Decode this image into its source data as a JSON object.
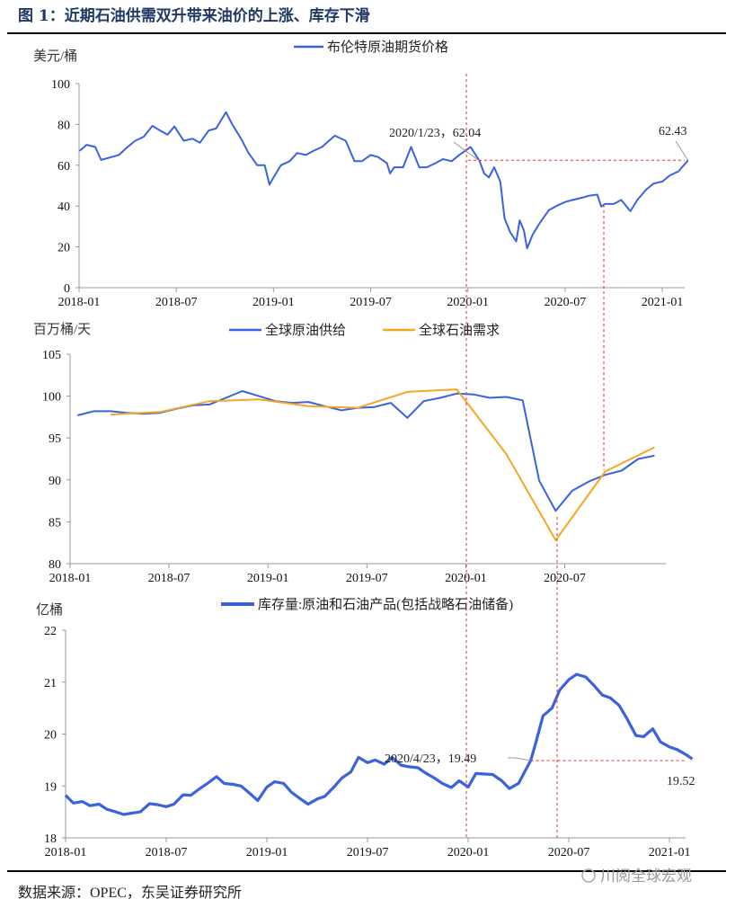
{
  "figure_title": "图 1：近期石油供需双升带来油价的上涨、库存下滑",
  "source": "数据来源：OPEC，东吴证券研究所",
  "watermark": "川阅全球宏观",
  "colors": {
    "blue": "#3a62e0",
    "orange": "#f5a623",
    "ref_line": "#e03030",
    "title": "#1f3864"
  },
  "reference_dates": [
    "2020-01",
    "2020-06",
    "2020-09"
  ],
  "chart_data": [
    {
      "type": "line",
      "ylabel": "美元/桶",
      "ylim": [
        0,
        100
      ],
      "yticks": [
        "0",
        "20",
        "40",
        "60",
        "80",
        "100"
      ],
      "xticks": [
        "2018-01",
        "2018-07",
        "2019-01",
        "2019-07",
        "2020-01",
        "2020-07",
        "2021-01"
      ],
      "legend_position": "top-center",
      "grid": false,
      "series": [
        {
          "name": "布伦特原油期货价格",
          "color": "#3a62e0",
          "x": [
            "2018-01-02",
            "2018-01-15",
            "2018-02-01",
            "2018-02-12",
            "2018-03-01",
            "2018-03-15",
            "2018-04-01",
            "2018-04-15",
            "2018-05-01",
            "2018-05-17",
            "2018-06-01",
            "2018-06-15",
            "2018-06-28",
            "2018-07-15",
            "2018-08-01",
            "2018-08-15",
            "2018-09-01",
            "2018-09-15",
            "2018-10-03",
            "2018-10-15",
            "2018-11-01",
            "2018-11-15",
            "2018-12-01",
            "2018-12-15",
            "2018-12-24",
            "2019-01-01",
            "2019-01-15",
            "2019-02-01",
            "2019-02-15",
            "2019-03-01",
            "2019-03-15",
            "2019-04-01",
            "2019-04-25",
            "2019-05-15",
            "2019-06-01",
            "2019-06-15",
            "2019-07-01",
            "2019-07-15",
            "2019-08-01",
            "2019-08-07",
            "2019-08-15",
            "2019-09-01",
            "2019-09-16",
            "2019-10-01",
            "2019-10-15",
            "2019-11-01",
            "2019-11-15",
            "2019-12-01",
            "2019-12-15",
            "2020-01-06",
            "2020-01-23",
            "2020-02-01",
            "2020-02-10",
            "2020-02-20",
            "2020-03-01",
            "2020-03-09",
            "2020-03-20",
            "2020-03-31",
            "2020-04-07",
            "2020-04-15",
            "2020-04-21",
            "2020-05-01",
            "2020-05-15",
            "2020-06-01",
            "2020-06-15",
            "2020-07-01",
            "2020-07-15",
            "2020-08-01",
            "2020-08-15",
            "2020-08-31",
            "2020-09-08",
            "2020-09-15",
            "2020-10-01",
            "2020-10-15",
            "2020-11-02",
            "2020-11-15",
            "2020-12-01",
            "2020-12-15",
            "2021-01-01",
            "2021-01-15",
            "2021-02-01",
            "2021-02-19"
          ],
          "values": [
            67,
            70,
            69,
            62.6,
            64,
            65,
            69,
            72,
            74,
            79.3,
            77,
            75,
            79,
            72,
            73,
            71,
            77,
            78,
            86,
            80,
            73,
            66,
            60,
            60,
            50.5,
            54,
            60,
            62,
            66,
            65,
            67,
            69,
            74.5,
            72,
            62,
            62,
            65,
            64,
            61,
            56,
            59,
            59,
            69,
            59,
            59,
            61,
            63,
            62,
            65,
            69,
            62.04,
            56,
            54,
            59,
            52,
            34,
            27,
            22.7,
            33,
            28,
            19.3,
            26,
            32,
            38,
            40,
            42,
            43,
            44,
            45,
            45.6,
            39.8,
            41,
            41,
            43,
            37.5,
            43,
            48,
            51,
            52,
            55,
            57,
            62.43
          ]
        }
      ],
      "annotations": [
        {
          "text": "2020/1/23，62.04",
          "x": "2020-01-23",
          "y": 62.04
        },
        {
          "text": "62.43",
          "x": "2021-02-19",
          "y": 62.43
        }
      ]
    },
    {
      "type": "line",
      "ylabel": "百万桶/天",
      "ylim": [
        80,
        105
      ],
      "yticks": [
        "80",
        "85",
        "90",
        "95",
        "100",
        "105"
      ],
      "xticks": [
        "2018-01",
        "2018-07",
        "2019-01",
        "2019-07",
        "2020-01",
        "2020-07"
      ],
      "legend_position": "top-center",
      "grid": false,
      "series": [
        {
          "name": "全球原油供给",
          "color": "#3a62e0",
          "x": [
            "2018-01",
            "2018-02",
            "2018-03",
            "2018-04",
            "2018-05",
            "2018-06",
            "2018-07",
            "2018-08",
            "2018-09",
            "2018-10",
            "2018-11",
            "2018-12",
            "2019-01",
            "2019-02",
            "2019-03",
            "2019-04",
            "2019-05",
            "2019-06",
            "2019-07",
            "2019-08",
            "2019-09",
            "2019-10",
            "2019-11",
            "2019-12",
            "2020-01",
            "2020-02",
            "2020-03",
            "2020-04",
            "2020-05",
            "2020-06",
            "2020-07",
            "2020-08",
            "2020-09",
            "2020-10",
            "2020-11",
            "2020-12"
          ],
          "values": [
            97.7,
            98.2,
            98.2,
            98.0,
            97.9,
            98.0,
            98.5,
            98.9,
            99.0,
            99.8,
            100.6,
            100.0,
            99.4,
            99.2,
            99.3,
            98.8,
            98.3,
            98.6,
            98.7,
            99.2,
            97.4,
            99.4,
            99.8,
            100.3,
            100.2,
            99.8,
            99.9,
            99.5,
            89.9,
            86.3,
            88.7,
            89.8,
            90.6,
            91.1,
            92.5,
            92.9
          ]
        },
        {
          "name": "全球石油需求",
          "color": "#f5a623",
          "x": [
            "2018-03",
            "2018-06",
            "2018-09",
            "2018-12",
            "2019-03",
            "2019-06",
            "2019-09",
            "2019-12",
            "2020-03",
            "2020-06",
            "2020-09",
            "2020-12"
          ],
          "values": [
            97.8,
            98.1,
            99.4,
            99.6,
            98.8,
            98.6,
            100.5,
            100.8,
            93.1,
            82.8,
            91.0,
            93.9
          ]
        }
      ]
    },
    {
      "type": "line",
      "ylabel": "亿桶",
      "ylim": [
        18,
        22
      ],
      "yticks": [
        "18",
        "19",
        "20",
        "21",
        "22"
      ],
      "xticks": [
        "2018-01",
        "2018-07",
        "2019-01",
        "2019-07",
        "2020-01",
        "2020-07",
        "2021-01"
      ],
      "legend_position": "top-center",
      "grid": false,
      "series": [
        {
          "name": "库存量:原油和石油产品(包括战略石油储备)",
          "color": "#3a62e0",
          "x": [
            "2018-01-01",
            "2018-01-15",
            "2018-02-01",
            "2018-02-15",
            "2018-03-01",
            "2018-03-15",
            "2018-04-01",
            "2018-04-15",
            "2018-05-01",
            "2018-05-15",
            "2018-06-01",
            "2018-06-15",
            "2018-07-01",
            "2018-07-15",
            "2018-08-01",
            "2018-08-15",
            "2018-09-01",
            "2018-09-15",
            "2018-10-01",
            "2018-10-15",
            "2018-11-01",
            "2018-11-15",
            "2018-12-01",
            "2018-12-15",
            "2019-01-01",
            "2019-01-15",
            "2019-02-01",
            "2019-02-15",
            "2019-03-01",
            "2019-03-15",
            "2019-04-01",
            "2019-04-15",
            "2019-05-01",
            "2019-05-15",
            "2019-06-01",
            "2019-06-15",
            "2019-07-01",
            "2019-07-15",
            "2019-08-01",
            "2019-08-15",
            "2019-09-01",
            "2019-09-15",
            "2019-10-01",
            "2019-10-15",
            "2019-11-01",
            "2019-11-15",
            "2019-12-01",
            "2019-12-15",
            "2020-01-01",
            "2020-01-15",
            "2020-02-01",
            "2020-02-15",
            "2020-03-01",
            "2020-03-15",
            "2020-04-01",
            "2020-04-23",
            "2020-05-01",
            "2020-05-15",
            "2020-06-01",
            "2020-06-15",
            "2020-07-01",
            "2020-07-15",
            "2020-08-01",
            "2020-08-15",
            "2020-09-01",
            "2020-09-15",
            "2020-10-01",
            "2020-10-15",
            "2020-11-01",
            "2020-11-15",
            "2020-12-01",
            "2020-12-15",
            "2021-01-01",
            "2021-01-15",
            "2021-02-01",
            "2021-02-12"
          ],
          "values": [
            18.82,
            18.67,
            18.7,
            18.62,
            18.65,
            18.55,
            18.5,
            18.45,
            18.48,
            18.5,
            18.66,
            18.64,
            18.6,
            18.65,
            18.83,
            18.82,
            18.95,
            19.05,
            19.18,
            19.05,
            19.03,
            19.0,
            18.85,
            18.72,
            18.98,
            19.08,
            19.05,
            18.88,
            18.75,
            18.65,
            18.75,
            18.8,
            18.98,
            19.15,
            19.27,
            19.55,
            19.45,
            19.5,
            19.42,
            19.55,
            19.4,
            19.37,
            19.35,
            19.25,
            19.15,
            19.05,
            18.97,
            19.1,
            18.98,
            19.24,
            19.23,
            19.22,
            19.1,
            18.95,
            19.05,
            19.49,
            19.8,
            20.35,
            20.5,
            20.85,
            21.05,
            21.15,
            21.1,
            20.95,
            20.75,
            20.7,
            20.55,
            20.3,
            19.97,
            19.95,
            20.1,
            19.85,
            19.75,
            19.7,
            19.6,
            19.52
          ]
        }
      ],
      "annotations": [
        {
          "text": "2020/4/23，19.49",
          "x": "2020-04-23",
          "y": 19.49
        },
        {
          "text": "19.52",
          "x": "2021-02-12",
          "y": 19.52
        }
      ]
    }
  ]
}
